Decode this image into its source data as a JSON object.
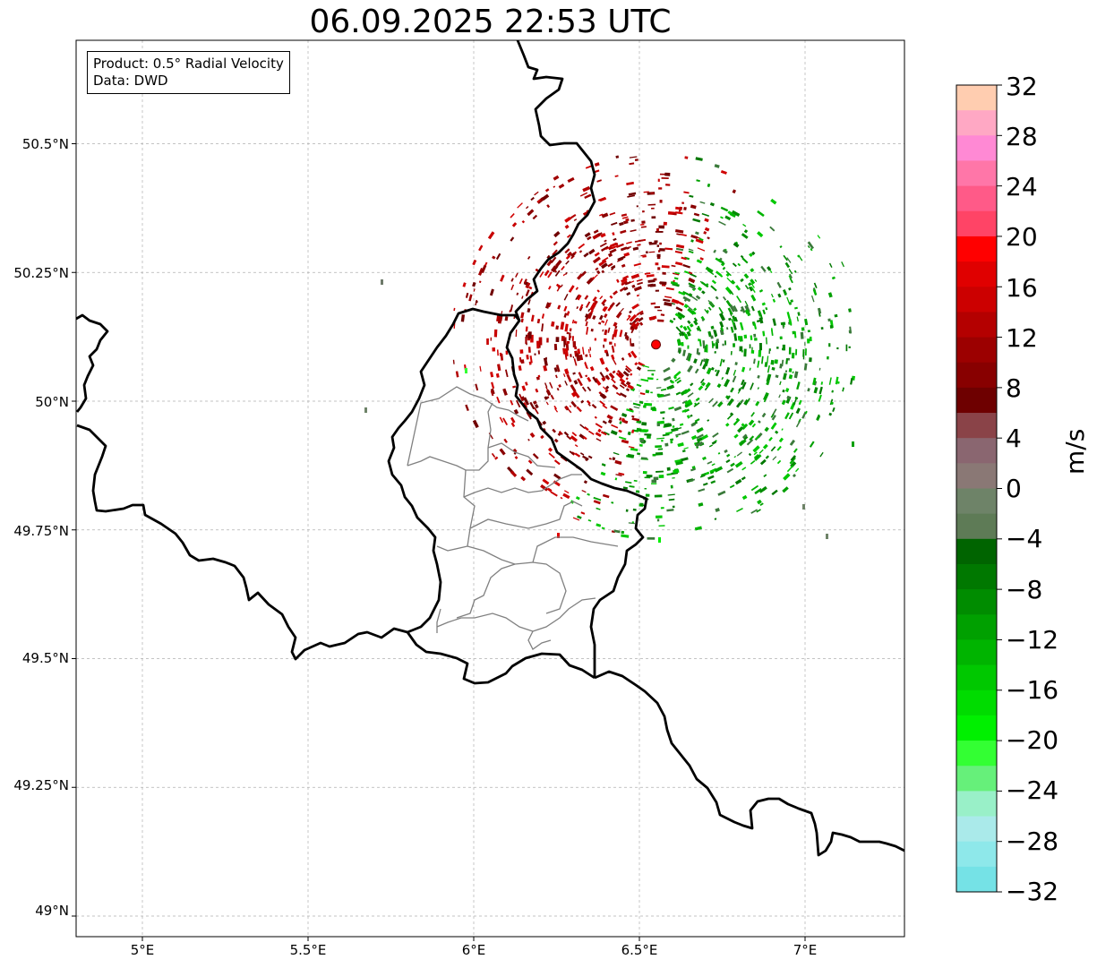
{
  "title": "06.09.2025 22:53 UTC",
  "infobox": {
    "product_line": "Product: 0.5° Radial Velocity",
    "data_line": "Data: DWD"
  },
  "axes": {
    "lon_labels": [
      "5°E",
      "5.5°E",
      "6°E",
      "6.5°E",
      "7°E"
    ],
    "lat_labels": [
      "50.5°N",
      "50.25°N",
      "50°N",
      "49.75°N",
      "49.5°N",
      "49.25°N",
      "49°N"
    ],
    "lon_ticks": [
      5.0,
      5.5,
      6.0,
      6.5,
      7.0
    ],
    "lat_ticks": [
      50.5,
      50.25,
      50.0,
      49.75,
      49.5,
      49.25,
      49.0
    ],
    "lon_range": [
      4.8,
      7.3
    ],
    "lat_range": [
      48.95,
      50.7
    ],
    "gridlines": true
  },
  "radar_site": {
    "lon": 6.55,
    "lat": 50.11,
    "color": "#ff0000"
  },
  "colorbar": {
    "unit": "m/s",
    "min": -32,
    "max": 32,
    "tick_labels": [
      "32",
      "28",
      "24",
      "20",
      "16",
      "12",
      "8",
      "4",
      "0",
      "−4",
      "−8",
      "−12",
      "−16",
      "−20",
      "−24",
      "−28",
      "−32"
    ],
    "tick_values": [
      32,
      28,
      24,
      20,
      16,
      12,
      8,
      4,
      0,
      -4,
      -8,
      -12,
      -16,
      -20,
      -24,
      -28,
      -32
    ],
    "colors_top_to_bottom": [
      "#ffcdb0",
      "#ffa8c4",
      "#ff89d4",
      "#ff76a8",
      "#ff5a88",
      "#ff4466",
      "#ff0000",
      "#e00000",
      "#cc0000",
      "#b40000",
      "#9c0000",
      "#880000",
      "#6e0000",
      "#8a4348",
      "#8a6670",
      "#8a7875",
      "#6e8368",
      "#5e7b56",
      "#006400",
      "#007800",
      "#008c00",
      "#00a000",
      "#00b400",
      "#00c800",
      "#00dc00",
      "#00f000",
      "#33ff33",
      "#66f07a",
      "#99f0c8",
      "#aaeaea",
      "#8ee8ea",
      "#75e2e6"
    ]
  },
  "colors": {
    "country_border": "#000000",
    "district_border": "#808080",
    "grid": "#b0b0b0",
    "inbound_green": "#00a000",
    "outbound_red": "#b00000"
  }
}
